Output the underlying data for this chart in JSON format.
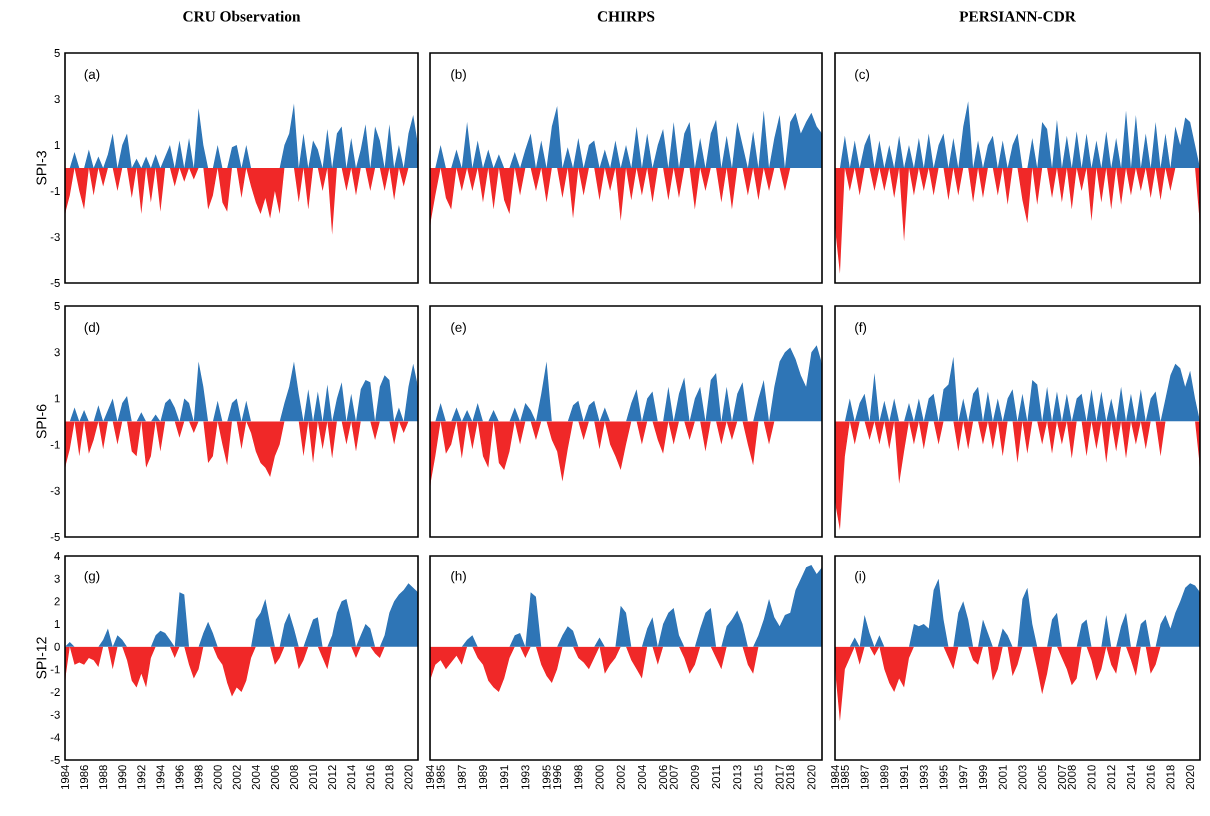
{
  "chart_data": [
    {
      "type": "area",
      "title": "CRU Observation",
      "ylabel": "SPI-3",
      "annotations": [
        "(a)"
      ],
      "xlim": [
        1984,
        2021
      ],
      "ylim": [
        -5,
        5
      ],
      "yticks": [
        -5,
        -3,
        -1,
        1,
        3,
        5
      ],
      "tick_labels": "y",
      "x": [
        1984,
        1984.5,
        1985,
        1985.5,
        1986,
        1986.5,
        1987,
        1987.5,
        1988,
        1988.5,
        1989,
        1989.5,
        1990,
        1990.5,
        1991,
        1991.5,
        1992,
        1992.5,
        1993,
        1993.5,
        1994,
        1994.5,
        1995,
        1995.5,
        1996,
        1996.5,
        1997,
        1997.5,
        1998,
        1998.5,
        1999,
        1999.5,
        2000,
        2000.5,
        2001,
        2001.5,
        2002,
        2002.5,
        2003,
        2003.5,
        2004,
        2004.5,
        2005,
        2005.5,
        2006,
        2006.5,
        2007,
        2007.5,
        2008,
        2008.5,
        2009,
        2009.5,
        2010,
        2010.5,
        2011,
        2011.5,
        2012,
        2012.5,
        2013,
        2013.5,
        2014,
        2014.5,
        2015,
        2015.5,
        2016,
        2016.5,
        2017,
        2017.5,
        2018,
        2018.5,
        2019,
        2019.5,
        2020,
        2020.5,
        2021
      ],
      "series": [
        {
          "color": "#2e75b6",
          "values": [
            0,
            0,
            0.7,
            0,
            0,
            0.8,
            0,
            0.5,
            0,
            0.6,
            1.5,
            0,
            1.0,
            1.5,
            0,
            0.4,
            0,
            0.5,
            0,
            0.6,
            0,
            0.5,
            1.0,
            0,
            1.2,
            0,
            1.3,
            0,
            2.6,
            1.0,
            0,
            0,
            1.0,
            0,
            0,
            0.9,
            1.0,
            0,
            1.0,
            0,
            0,
            0,
            0,
            0,
            0,
            0,
            1.0,
            1.5,
            2.8,
            0,
            1.5,
            0,
            1.2,
            0.8,
            0,
            1.7,
            0,
            1.5,
            1.8,
            0,
            1.3,
            0,
            0.8,
            1.9,
            0,
            1.8,
            1.2,
            0,
            1.9,
            0,
            1.0,
            0,
            1.5,
            2.3,
            1.0
          ]
        },
        {
          "color": "#f02828",
          "values": [
            -2.0,
            -1.2,
            0,
            -1.0,
            -1.8,
            0,
            -1.2,
            0,
            -0.8,
            0,
            0,
            -1.0,
            0,
            0,
            -1.3,
            0,
            -2.0,
            0,
            -1.5,
            0,
            -1.9,
            0,
            0,
            -0.8,
            0,
            -0.6,
            0,
            -0.5,
            0,
            0,
            -1.8,
            -1.2,
            0,
            -1.5,
            -1.9,
            0,
            0,
            -1.3,
            0,
            -0.8,
            -1.5,
            -2.0,
            -1.3,
            -2.2,
            -1.0,
            -2.0,
            0,
            0,
            0,
            -1.5,
            0,
            -1.8,
            0,
            0,
            -1.0,
            0,
            -2.9,
            0,
            0,
            -1.0,
            0,
            -1.2,
            0,
            0,
            -1.0,
            0,
            0,
            -1.0,
            0,
            -1.4,
            0,
            -0.8,
            0,
            0,
            0
          ]
        }
      ]
    },
    {
      "type": "area",
      "title": "CHIRPS",
      "annotations": [
        "(b)"
      ],
      "xlim": [
        1984,
        2021
      ],
      "ylim": [
        -5,
        5
      ],
      "tick_labels": false,
      "x": [
        1984,
        1984.5,
        1985,
        1985.5,
        1986,
        1986.5,
        1987,
        1987.5,
        1988,
        1988.5,
        1989,
        1989.5,
        1990,
        1990.5,
        1991,
        1991.5,
        1992,
        1992.5,
        1993,
        1993.5,
        1994,
        1994.5,
        1995,
        1995.5,
        1996,
        1996.5,
        1997,
        1997.5,
        1998,
        1998.5,
        1999,
        1999.5,
        2000,
        2000.5,
        2001,
        2001.5,
        2002,
        2002.5,
        2003,
        2003.5,
        2004,
        2004.5,
        2005,
        2005.5,
        2006,
        2006.5,
        2007,
        2007.5,
        2008,
        2008.5,
        2009,
        2009.5,
        2010,
        2010.5,
        2011,
        2011.5,
        2012,
        2012.5,
        2013,
        2013.5,
        2014,
        2014.5,
        2015,
        2015.5,
        2016,
        2016.5,
        2017,
        2017.5,
        2018,
        2018.5,
        2019,
        2019.5,
        2020,
        2020.5,
        2021
      ],
      "series": [
        {
          "color": "#2e75b6",
          "values": [
            0,
            0,
            1.0,
            0,
            0,
            0.8,
            0,
            2.0,
            0,
            1.2,
            0,
            0.8,
            0,
            0.6,
            0,
            0,
            0.7,
            0,
            0.8,
            1.5,
            0,
            1.2,
            0,
            1.8,
            2.7,
            0,
            0.9,
            0,
            1.3,
            0,
            1.0,
            1.2,
            0,
            0.8,
            0,
            1.2,
            0,
            1.0,
            0,
            1.8,
            0,
            1.5,
            0,
            1.0,
            1.7,
            0,
            2.0,
            0,
            1.5,
            2.0,
            0,
            1.3,
            0,
            1.5,
            2.1,
            0,
            1.4,
            0,
            2.0,
            1.0,
            0,
            1.6,
            0,
            2.5,
            0,
            1.3,
            2.3,
            0,
            2.0,
            2.4,
            1.5,
            2.0,
            2.4,
            1.8,
            1.5
          ]
        },
        {
          "color": "#f02828",
          "values": [
            -2.5,
            -1.2,
            0,
            -1.3,
            -1.8,
            0,
            -1.0,
            0,
            -1.0,
            0,
            -1.5,
            0,
            -1.8,
            0,
            -1.4,
            -2.0,
            0,
            -1.2,
            0,
            0,
            -1.0,
            0,
            -1.5,
            0,
            0,
            -1.3,
            0,
            -2.2,
            0,
            -1.2,
            0,
            0,
            -1.4,
            0,
            -1.0,
            0,
            -2.3,
            0,
            -1.4,
            0,
            -1.2,
            0,
            -1.5,
            0,
            0,
            -1.4,
            0,
            -1.3,
            0,
            0,
            -1.8,
            0,
            -1.0,
            0,
            0,
            -1.5,
            0,
            -1.8,
            0,
            0,
            -1.2,
            0,
            -1.4,
            0,
            -1.0,
            0,
            0,
            -1.0,
            0,
            0,
            0,
            0,
            0,
            0,
            0
          ]
        }
      ]
    },
    {
      "type": "area",
      "title": "PERSIANN-CDR",
      "annotations": [
        "(c)"
      ],
      "xlim": [
        1984,
        2021
      ],
      "ylim": [
        -5,
        5
      ],
      "tick_labels": false,
      "x": [
        1984,
        1984.5,
        1985,
        1985.5,
        1986,
        1986.5,
        1987,
        1987.5,
        1988,
        1988.5,
        1989,
        1989.5,
        1990,
        1990.5,
        1991,
        1991.5,
        1992,
        1992.5,
        1993,
        1993.5,
        1994,
        1994.5,
        1995,
        1995.5,
        1996,
        1996.5,
        1997,
        1997.5,
        1998,
        1998.5,
        1999,
        1999.5,
        2000,
        2000.5,
        2001,
        2001.5,
        2002,
        2002.5,
        2003,
        2003.5,
        2004,
        2004.5,
        2005,
        2005.5,
        2006,
        2006.5,
        2007,
        2007.5,
        2008,
        2008.5,
        2009,
        2009.5,
        2010,
        2010.5,
        2011,
        2011.5,
        2012,
        2012.5,
        2013,
        2013.5,
        2014,
        2014.5,
        2015,
        2015.5,
        2016,
        2016.5,
        2017,
        2017.5,
        2018,
        2018.5,
        2019,
        2019.5,
        2020,
        2020.5,
        2021
      ],
      "series": [
        {
          "color": "#2e75b6",
          "values": [
            0,
            0,
            1.4,
            0,
            1.2,
            0,
            1.0,
            1.5,
            0,
            1.2,
            0,
            1.0,
            0,
            1.4,
            0,
            1.0,
            0,
            1.3,
            0,
            1.5,
            0,
            1.0,
            1.5,
            0,
            1.3,
            0,
            1.8,
            2.9,
            0,
            1.2,
            0,
            1.0,
            1.4,
            0,
            1.2,
            0,
            1.0,
            1.5,
            0,
            0,
            1.3,
            0,
            2.0,
            1.7,
            0,
            2.1,
            0,
            1.4,
            0,
            1.6,
            0,
            1.5,
            0,
            1.2,
            0,
            1.6,
            0,
            1.3,
            0,
            2.5,
            0,
            2.3,
            0,
            1.5,
            0,
            2.0,
            0,
            1.5,
            0,
            1.8,
            1.0,
            2.2,
            2.0,
            1.0,
            0
          ]
        },
        {
          "color": "#f02828",
          "values": [
            -2.6,
            -4.6,
            0,
            -1.0,
            0,
            -1.2,
            0,
            0,
            -1.0,
            0,
            -1.0,
            0,
            -1.3,
            0,
            -3.2,
            0,
            -1.2,
            0,
            -1.0,
            0,
            -1.2,
            0,
            0,
            -1.4,
            0,
            -1.2,
            0,
            0,
            -1.5,
            0,
            -1.3,
            0,
            0,
            -1.2,
            0,
            -1.6,
            0,
            0,
            -1.4,
            -2.4,
            0,
            -1.6,
            0,
            0,
            -1.3,
            0,
            -1.5,
            0,
            -1.8,
            0,
            -1.0,
            0,
            -2.3,
            0,
            -1.5,
            0,
            -1.8,
            0,
            -1.6,
            0,
            -1.2,
            0,
            -1.0,
            0,
            -1.3,
            0,
            -1.4,
            0,
            -1.0,
            0,
            0,
            0,
            0,
            0,
            -2.5
          ]
        }
      ]
    },
    {
      "type": "area",
      "ylabel": "SPI-6",
      "annotations": [
        "(d)"
      ],
      "xlim": [
        1984,
        2021
      ],
      "ylim": [
        -5,
        5
      ],
      "yticks": [
        -5,
        -3,
        -1,
        1,
        3,
        5
      ],
      "tick_labels": "y",
      "x": [
        1984,
        1984.5,
        1985,
        1985.5,
        1986,
        1986.5,
        1987,
        1987.5,
        1988,
        1988.5,
        1989,
        1989.5,
        1990,
        1990.5,
        1991,
        1991.5,
        1992,
        1992.5,
        1993,
        1993.5,
        1994,
        1994.5,
        1995,
        1995.5,
        1996,
        1996.5,
        1997,
        1997.5,
        1998,
        1998.5,
        1999,
        1999.5,
        2000,
        2000.5,
        2001,
        2001.5,
        2002,
        2002.5,
        2003,
        2003.5,
        2004,
        2004.5,
        2005,
        2005.5,
        2006,
        2006.5,
        2007,
        2007.5,
        2008,
        2008.5,
        2009,
        2009.5,
        2010,
        2010.5,
        2011,
        2011.5,
        2012,
        2012.5,
        2013,
        2013.5,
        2014,
        2014.5,
        2015,
        2015.5,
        2016,
        2016.5,
        2017,
        2017.5,
        2018,
        2018.5,
        2019,
        2019.5,
        2020,
        2020.5,
        2021
      ],
      "series": [
        {
          "color": "#2e75b6",
          "values": [
            0,
            0,
            0.6,
            0,
            0.5,
            0,
            0,
            0.7,
            0,
            0.5,
            1.0,
            0,
            0.8,
            1.1,
            0,
            0,
            0.4,
            0,
            0,
            0.3,
            0,
            0.8,
            1.0,
            0.6,
            0,
            1.0,
            0.8,
            0,
            2.6,
            1.5,
            0,
            0,
            0.9,
            0,
            0,
            0.8,
            1.0,
            0,
            0.9,
            0,
            0,
            0,
            0,
            0,
            0,
            0,
            0.8,
            1.5,
            2.6,
            1.2,
            0,
            1.4,
            0,
            1.3,
            0,
            1.6,
            0,
            1.0,
            1.7,
            0,
            1.2,
            0,
            1.4,
            1.8,
            1.7,
            0,
            1.5,
            2.0,
            1.8,
            0,
            0.6,
            0,
            1.5,
            2.5,
            1.5
          ]
        },
        {
          "color": "#f02828",
          "values": [
            -2.0,
            -1.2,
            0,
            -1.5,
            0,
            -1.4,
            -0.8,
            0,
            -1.2,
            0,
            0,
            -1.0,
            0,
            0,
            -1.3,
            -1.5,
            0,
            -2.0,
            -1.5,
            0,
            -1.3,
            0,
            0,
            0,
            -0.7,
            0,
            0,
            -0.5,
            0,
            0,
            -1.8,
            -1.5,
            0,
            -1.0,
            -1.9,
            0,
            0,
            -1.2,
            0,
            -0.5,
            -1.3,
            -1.8,
            -2.0,
            -2.4,
            -1.5,
            -1.0,
            0,
            0,
            0,
            0,
            -1.5,
            0,
            -1.8,
            0,
            -1.2,
            0,
            -1.6,
            0,
            0,
            -1.0,
            0,
            -1.3,
            0,
            0,
            0,
            -0.8,
            0,
            0,
            0,
            -1.0,
            0,
            -0.5,
            0,
            0,
            0
          ]
        }
      ]
    },
    {
      "type": "area",
      "annotations": [
        "(e)"
      ],
      "xlim": [
        1984,
        2021
      ],
      "ylim": [
        -5,
        5
      ],
      "tick_labels": false,
      "x": [
        1984,
        1984.5,
        1985,
        1985.5,
        1986,
        1986.5,
        1987,
        1987.5,
        1988,
        1988.5,
        1989,
        1989.5,
        1990,
        1990.5,
        1991,
        1991.5,
        1992,
        1992.5,
        1993,
        1993.5,
        1994,
        1994.5,
        1995,
        1995.5,
        1996,
        1996.5,
        1997,
        1997.5,
        1998,
        1998.5,
        1999,
        1999.5,
        2000,
        2000.5,
        2001,
        2001.5,
        2002,
        2002.5,
        2003,
        2003.5,
        2004,
        2004.5,
        2005,
        2005.5,
        2006,
        2006.5,
        2007,
        2007.5,
        2008,
        2008.5,
        2009,
        2009.5,
        2010,
        2010.5,
        2011,
        2011.5,
        2012,
        2012.5,
        2013,
        2013.5,
        2014,
        2014.5,
        2015,
        2015.5,
        2016,
        2016.5,
        2017,
        2017.5,
        2018,
        2018.5,
        2019,
        2019.5,
        2020,
        2020.5,
        2021
      ],
      "series": [
        {
          "color": "#2e75b6",
          "values": [
            0,
            0,
            0.8,
            0,
            0,
            0.6,
            0,
            0.5,
            0,
            0.8,
            0,
            0,
            0.5,
            0,
            0,
            0,
            0.6,
            0,
            0.8,
            0.5,
            0,
            1.2,
            2.6,
            0,
            0,
            0,
            0,
            0.7,
            0.9,
            0,
            0.7,
            0.9,
            0,
            0.6,
            0,
            0,
            0,
            0,
            0.8,
            1.4,
            0,
            1.0,
            1.3,
            0,
            0,
            1.5,
            0,
            1.2,
            1.9,
            0,
            1.0,
            1.5,
            0,
            1.8,
            2.1,
            0,
            1.5,
            0,
            1.2,
            1.7,
            0,
            0,
            1.0,
            1.8,
            0,
            1.5,
            2.6,
            3.0,
            3.2,
            2.7,
            2.0,
            1.5,
            3.0,
            3.3,
            2.5
          ]
        },
        {
          "color": "#f02828",
          "values": [
            -2.8,
            -1.5,
            0,
            -1.4,
            -1.0,
            0,
            -1.6,
            0,
            -1.2,
            0,
            -1.5,
            -2.0,
            0,
            -1.8,
            -2.1,
            -1.3,
            0,
            -1.0,
            0,
            0,
            -0.8,
            0,
            0,
            -0.8,
            -1.3,
            -2.6,
            -1.2,
            0,
            0,
            -0.8,
            0,
            0,
            -1.2,
            0,
            -1.0,
            -1.5,
            -2.1,
            -1.0,
            0,
            0,
            -1.0,
            0,
            0,
            -0.8,
            -1.4,
            0,
            -1.0,
            0,
            0,
            -0.8,
            0,
            0,
            -1.3,
            0,
            0,
            -1.0,
            0,
            -0.8,
            0,
            0,
            -1.0,
            -1.9,
            0,
            0,
            -1.0,
            0,
            0,
            0,
            0,
            0,
            0,
            0,
            0,
            0,
            0
          ]
        }
      ]
    },
    {
      "type": "area",
      "annotations": [
        "(f)"
      ],
      "xlim": [
        1984,
        2021
      ],
      "ylim": [
        -5,
        5
      ],
      "tick_labels": false,
      "x": [
        1984,
        1984.5,
        1985,
        1985.5,
        1986,
        1986.5,
        1987,
        1987.5,
        1988,
        1988.5,
        1989,
        1989.5,
        1990,
        1990.5,
        1991,
        1991.5,
        1992,
        1992.5,
        1993,
        1993.5,
        1994,
        1994.5,
        1995,
        1995.5,
        1996,
        1996.5,
        1997,
        1997.5,
        1998,
        1998.5,
        1999,
        1999.5,
        2000,
        2000.5,
        2001,
        2001.5,
        2002,
        2002.5,
        2003,
        2003.5,
        2004,
        2004.5,
        2005,
        2005.5,
        2006,
        2006.5,
        2007,
        2007.5,
        2008,
        2008.5,
        2009,
        2009.5,
        2010,
        2010.5,
        2011,
        2011.5,
        2012,
        2012.5,
        2013,
        2013.5,
        2014,
        2014.5,
        2015,
        2015.5,
        2016,
        2016.5,
        2017,
        2017.5,
        2018,
        2018.5,
        2019,
        2019.5,
        2020,
        2020.5,
        2021
      ],
      "series": [
        {
          "color": "#2e75b6",
          "values": [
            0,
            0,
            0,
            1.0,
            0,
            0.8,
            1.2,
            0,
            2.1,
            0,
            0.9,
            0,
            1.0,
            0,
            0,
            0.8,
            0,
            1.0,
            0,
            1.0,
            1.2,
            0,
            1.4,
            1.6,
            2.8,
            0,
            1.0,
            0,
            1.2,
            1.5,
            0,
            1.3,
            0,
            1.0,
            0,
            1.0,
            1.4,
            0,
            1.2,
            0,
            1.8,
            1.6,
            0,
            1.5,
            0,
            1.3,
            0,
            1.2,
            0,
            1.0,
            1.2,
            0,
            1.4,
            0,
            1.3,
            0,
            1.0,
            0,
            1.5,
            0,
            1.2,
            0,
            1.4,
            0,
            1.0,
            1.3,
            0,
            1.0,
            2.0,
            2.5,
            2.3,
            1.5,
            2.2,
            1.0,
            0
          ]
        },
        {
          "color": "#f02828",
          "values": [
            -3.5,
            -4.7,
            -1.5,
            0,
            -1.0,
            0,
            0,
            -0.8,
            0,
            -1.0,
            0,
            -1.2,
            0,
            -2.7,
            -1.3,
            0,
            -1.0,
            0,
            -1.2,
            0,
            0,
            -1.0,
            0,
            0,
            0,
            -1.3,
            0,
            -1.2,
            0,
            0,
            -1.0,
            0,
            -1.2,
            0,
            -1.5,
            0,
            0,
            -1.8,
            0,
            -1.4,
            0,
            0,
            -1.0,
            0,
            -1.4,
            0,
            -1.0,
            0,
            -1.6,
            0,
            0,
            -1.5,
            0,
            -1.2,
            0,
            -1.8,
            0,
            -1.3,
            0,
            -1.6,
            0,
            -1.0,
            0,
            -1.2,
            0,
            0,
            -1.5,
            0,
            0,
            0,
            0,
            0,
            0,
            0,
            -2.0
          ]
        }
      ]
    },
    {
      "type": "area",
      "ylabel": "SPI-12",
      "annotations": [
        "(g)"
      ],
      "xlim": [
        1984,
        2021
      ],
      "ylim": [
        -5,
        4
      ],
      "yticks": [
        -5,
        -4,
        -3,
        -2,
        -1,
        0,
        1,
        2,
        3,
        4
      ],
      "xticks": [
        1984,
        1986,
        1988,
        1990,
        1992,
        1994,
        1996,
        1998,
        2000,
        2002,
        2004,
        2006,
        2008,
        2010,
        2012,
        2014,
        2016,
        2018,
        2020
      ],
      "x": [
        1984,
        1984.5,
        1985,
        1985.5,
        1986,
        1986.5,
        1987,
        1987.5,
        1988,
        1988.5,
        1989,
        1989.5,
        1990,
        1990.5,
        1991,
        1991.5,
        1992,
        1992.5,
        1993,
        1993.5,
        1994,
        1994.5,
        1995,
        1995.5,
        1996,
        1996.5,
        1997,
        1997.5,
        1998,
        1998.5,
        1999,
        1999.5,
        2000,
        2000.5,
        2001,
        2001.5,
        2002,
        2002.5,
        2003,
        2003.5,
        2004,
        2004.5,
        2005,
        2005.5,
        2006,
        2006.5,
        2007,
        2007.5,
        2008,
        2008.5,
        2009,
        2009.5,
        2010,
        2010.5,
        2011,
        2011.5,
        2012,
        2012.5,
        2013,
        2013.5,
        2014,
        2014.5,
        2015,
        2015.5,
        2016,
        2016.5,
        2017,
        2017.5,
        2018,
        2018.5,
        2019,
        2019.5,
        2020,
        2020.5,
        2021
      ],
      "series": [
        {
          "color": "#2e75b6",
          "values": [
            0,
            0.2,
            0,
            0,
            0,
            0,
            0,
            0,
            0.3,
            0.8,
            0,
            0.5,
            0.3,
            0,
            0,
            0,
            0,
            0,
            0,
            0.5,
            0.7,
            0.6,
            0.3,
            0,
            2.4,
            2.3,
            0,
            0,
            0,
            0.6,
            1.1,
            0.6,
            0,
            0,
            0,
            0,
            0,
            0,
            0,
            0,
            1.2,
            1.5,
            2.1,
            1.0,
            0,
            0,
            1.0,
            1.5,
            0.8,
            0,
            0,
            0.6,
            1.2,
            1.3,
            0,
            0,
            0.5,
            1.5,
            2.0,
            2.1,
            1.2,
            0,
            0.5,
            1.0,
            0.8,
            0,
            0,
            0.5,
            1.5,
            2.0,
            2.3,
            2.5,
            2.8,
            2.6,
            2.4
          ]
        },
        {
          "color": "#f02828",
          "values": [
            -1.5,
            0,
            -0.8,
            -0.7,
            -0.8,
            -0.5,
            -0.6,
            -0.9,
            0,
            0,
            -1.0,
            0,
            0,
            -0.6,
            -1.5,
            -1.8,
            -1.2,
            -1.8,
            -0.5,
            0,
            0,
            0,
            0,
            -0.5,
            0,
            0,
            -0.8,
            -1.4,
            -1.0,
            0,
            0,
            0,
            -0.5,
            -0.8,
            -1.6,
            -2.2,
            -1.8,
            -2.0,
            -1.5,
            -0.5,
            0,
            0,
            0,
            0,
            -0.8,
            -0.5,
            0,
            0,
            0,
            -1.0,
            -0.6,
            0,
            0,
            0,
            -0.5,
            -1.0,
            0,
            0,
            0,
            0,
            0,
            -0.5,
            0,
            0,
            0,
            -0.3,
            -0.5,
            0,
            0,
            0,
            0,
            0,
            0,
            0,
            0
          ]
        }
      ]
    },
    {
      "type": "area",
      "annotations": [
        "(h)"
      ],
      "xlim": [
        1984,
        2021
      ],
      "ylim": [
        -5,
        4
      ],
      "tick_labels": "x",
      "xticks": [
        1984,
        1985,
        1987,
        1989,
        1991,
        1993,
        1995,
        1996,
        1998,
        2000,
        2002,
        2004,
        2006,
        2007,
        2009,
        2011,
        2013,
        2015,
        2017,
        2018,
        2020
      ],
      "x": [
        1984,
        1984.5,
        1985,
        1985.5,
        1986,
        1986.5,
        1987,
        1987.5,
        1988,
        1988.5,
        1989,
        1989.5,
        1990,
        1990.5,
        1991,
        1991.5,
        1992,
        1992.5,
        1993,
        1993.5,
        1994,
        1994.5,
        1995,
        1995.5,
        1996,
        1996.5,
        1997,
        1997.5,
        1998,
        1998.5,
        1999,
        1999.5,
        2000,
        2000.5,
        2001,
        2001.5,
        2002,
        2002.5,
        2003,
        2003.5,
        2004,
        2004.5,
        2005,
        2005.5,
        2006,
        2006.5,
        2007,
        2007.5,
        2008,
        2008.5,
        2009,
        2009.5,
        2010,
        2010.5,
        2011,
        2011.5,
        2012,
        2012.5,
        2013,
        2013.5,
        2014,
        2014.5,
        2015,
        2015.5,
        2016,
        2016.5,
        2017,
        2017.5,
        2018,
        2018.5,
        2019,
        2019.5,
        2020,
        2020.5,
        2021
      ],
      "series": [
        {
          "color": "#2e75b6",
          "values": [
            0,
            0,
            0,
            0,
            0,
            0,
            0,
            0.3,
            0.5,
            0,
            0,
            0,
            0,
            0,
            0,
            0,
            0.5,
            0.6,
            0,
            2.4,
            2.2,
            0,
            0,
            0,
            0,
            0.5,
            0.9,
            0.7,
            0,
            0,
            0,
            0,
            0.4,
            0,
            0,
            0,
            1.8,
            1.5,
            0,
            0,
            0,
            0.8,
            1.3,
            0,
            1.0,
            1.5,
            1.7,
            0.5,
            0,
            0,
            0,
            0.8,
            1.5,
            1.7,
            0,
            0,
            0.9,
            1.2,
            1.6,
            1.0,
            0,
            0,
            0.5,
            1.2,
            2.1,
            1.3,
            0.9,
            1.4,
            1.5,
            2.5,
            3.0,
            3.5,
            3.6,
            3.2,
            3.5
          ]
        },
        {
          "color": "#f02828",
          "values": [
            -1.5,
            -0.8,
            -0.6,
            -1.0,
            -0.7,
            -0.4,
            -0.8,
            0,
            0,
            -0.5,
            -0.8,
            -1.5,
            -1.8,
            -2.0,
            -1.4,
            -0.5,
            0,
            0,
            -0.5,
            0,
            0,
            -0.8,
            -1.3,
            -1.6,
            -1.0,
            0,
            0,
            0,
            -0.5,
            -0.7,
            -1.0,
            -0.5,
            0,
            -1.2,
            -0.8,
            -0.5,
            0,
            0,
            -0.6,
            -1.0,
            -1.4,
            0,
            0,
            -0.8,
            0,
            0,
            0,
            0,
            -0.5,
            -1.2,
            -0.8,
            0,
            0,
            0,
            -0.5,
            -1.0,
            0,
            0,
            0,
            0,
            -0.8,
            -1.2,
            0,
            0,
            0,
            0,
            0,
            0,
            0,
            0,
            0,
            0,
            0,
            0,
            0
          ]
        }
      ]
    },
    {
      "type": "area",
      "annotations": [
        "(i)"
      ],
      "xlim": [
        1984,
        2021
      ],
      "ylim": [
        -5,
        4
      ],
      "tick_labels": "x",
      "xticks": [
        1984,
        1985,
        1987,
        1989,
        1991,
        1993,
        1995,
        1997,
        1999,
        2001,
        2003,
        2005,
        2007,
        2008,
        2010,
        2012,
        2014,
        2016,
        2018,
        2020
      ],
      "x": [
        1984,
        1984.5,
        1985,
        1985.5,
        1986,
        1986.5,
        1987,
        1987.5,
        1988,
        1988.5,
        1989,
        1989.5,
        1990,
        1990.5,
        1991,
        1991.5,
        1992,
        1992.5,
        1993,
        1993.5,
        1994,
        1994.5,
        1995,
        1995.5,
        1996,
        1996.5,
        1997,
        1997.5,
        1998,
        1998.5,
        1999,
        1999.5,
        2000,
        2000.5,
        2001,
        2001.5,
        2002,
        2002.5,
        2003,
        2003.5,
        2004,
        2004.5,
        2005,
        2005.5,
        2006,
        2006.5,
        2007,
        2007.5,
        2008,
        2008.5,
        2009,
        2009.5,
        2010,
        2010.5,
        2011,
        2011.5,
        2012,
        2012.5,
        2013,
        2013.5,
        2014,
        2014.5,
        2015,
        2015.5,
        2016,
        2016.5,
        2017,
        2017.5,
        2018,
        2018.5,
        2019,
        2019.5,
        2020,
        2020.5,
        2021
      ],
      "series": [
        {
          "color": "#2e75b6",
          "values": [
            0,
            0,
            0,
            0,
            0.4,
            0,
            1.4,
            0.6,
            0,
            0.5,
            0,
            0,
            0,
            0,
            0,
            0,
            1.0,
            0.9,
            1.0,
            0.8,
            2.5,
            3.0,
            1.2,
            0,
            0,
            1.5,
            2.0,
            1.2,
            0,
            0,
            1.2,
            0.6,
            0,
            0,
            0.8,
            0.5,
            0,
            0,
            2.1,
            2.6,
            1.0,
            0,
            0,
            0,
            1.2,
            1.5,
            0,
            0,
            0,
            0,
            1.0,
            1.2,
            0,
            0,
            0,
            1.4,
            0,
            0,
            0.9,
            1.5,
            0,
            0,
            1.0,
            1.2,
            0,
            0,
            1.0,
            1.4,
            0.8,
            1.5,
            2.0,
            2.6,
            2.8,
            2.7,
            2.4
          ]
        },
        {
          "color": "#f02828",
          "values": [
            -1.0,
            -3.3,
            -1.0,
            -0.5,
            0,
            -0.8,
            0,
            0,
            -0.4,
            0,
            -1.0,
            -1.6,
            -2.0,
            -1.4,
            -1.8,
            -0.5,
            0,
            0,
            0,
            0,
            0,
            0,
            0,
            -0.5,
            -1.0,
            0,
            0,
            0,
            -0.6,
            -0.8,
            0,
            0,
            -1.5,
            -1.0,
            0,
            0,
            -1.3,
            -0.8,
            0,
            0,
            0,
            -1.0,
            -2.1,
            -1.2,
            0,
            0,
            -0.5,
            -1.0,
            -1.7,
            -1.4,
            0,
            0,
            -0.6,
            -1.5,
            -1.0,
            0,
            -0.8,
            -1.2,
            0,
            0,
            -0.6,
            -1.3,
            0,
            0,
            -1.2,
            -0.8,
            0,
            0,
            0,
            0,
            0,
            0,
            0,
            0,
            0
          ]
        }
      ]
    }
  ]
}
